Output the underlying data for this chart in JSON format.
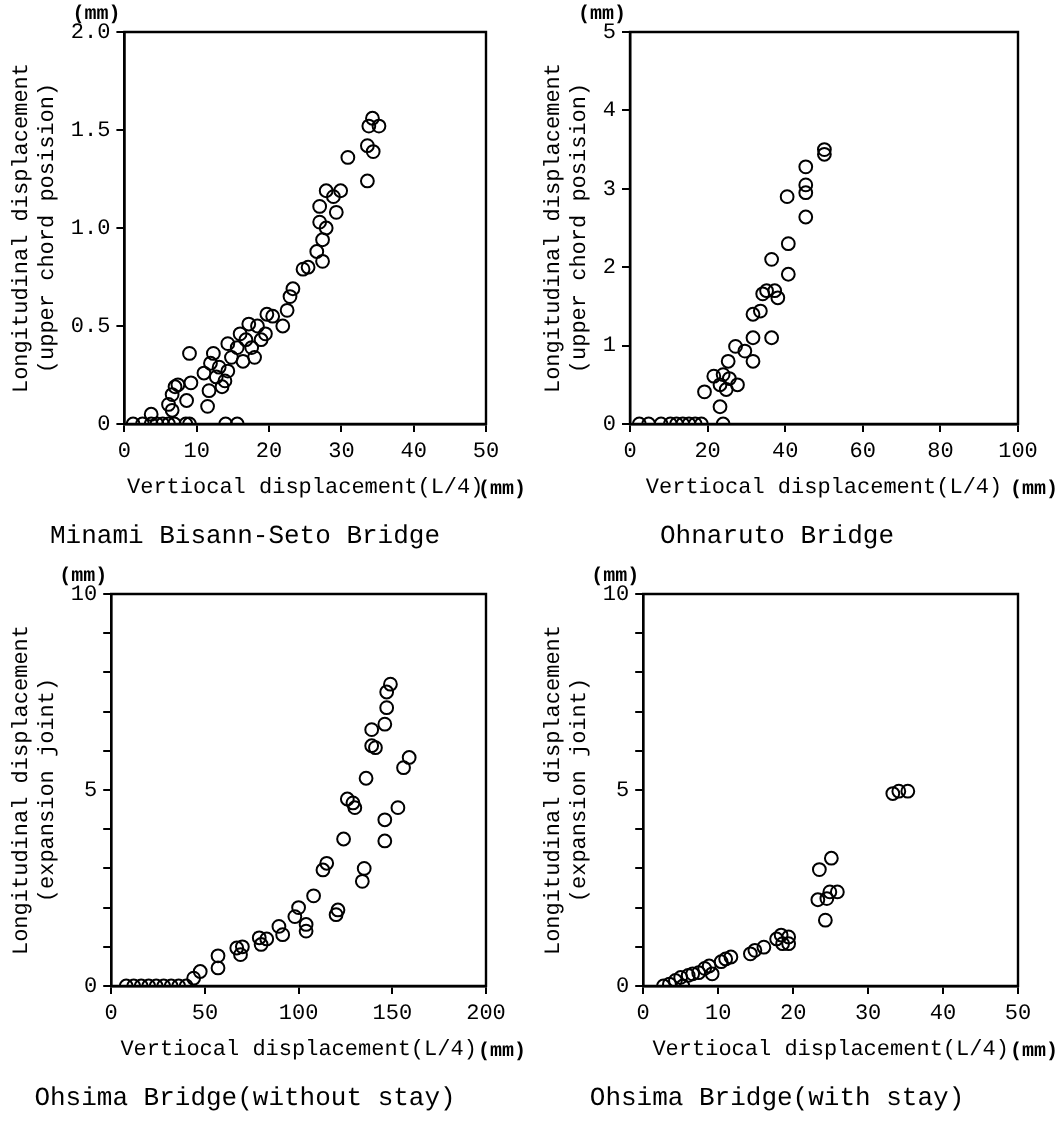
{
  "chart_data": [
    {
      "type": "scatter",
      "title": "Minami Bisann-Seto Bridge",
      "xlabel": "Vertiocal displacement(L/4)",
      "ylabel": "Longitudinal displacement\n(upper chord posision)",
      "annotations": [
        "(mm)",
        "(mm)"
      ],
      "marker": "circle",
      "xlim": [
        0,
        50
      ],
      "xticks": [
        0,
        10,
        20,
        30,
        40,
        50
      ],
      "ylim": [
        0,
        2
      ],
      "yticks": [
        0,
        {
          "value": 0.5,
          "label": "0.5"
        },
        {
          "value": 1,
          "label": "1.0"
        },
        {
          "value": 1.5,
          "label": "1.5"
        },
        {
          "value": 2,
          "label": "2.0"
        }
      ],
      "series": [
        {
          "color": "#000000",
          "x": [
            1.2,
            2.5,
            3.7,
            4.5,
            5.3,
            6.1,
            6.9,
            8.5,
            9,
            14,
            15.6,
            3.7,
            6.1,
            6.6,
            7,
            7.4,
            6.6,
            8.6,
            9,
            9.2,
            11,
            11.5,
            11.7,
            11.9,
            12.3,
            12.7,
            13.1,
            13.5,
            13.9,
            14.3,
            14.3,
            14.8,
            15.6,
            16,
            16.4,
            16.8,
            17.2,
            17.6,
            18,
            18.4,
            18.9,
            19.5,
            19.7,
            20.5,
            21.9,
            22.5,
            22.9,
            23.3,
            24.7,
            25.4,
            26.6,
            27,
            27,
            27.4,
            27.4,
            27.9,
            27.9,
            28.9,
            29.3,
            29.9,
            30.9,
            33.6,
            33.6,
            33.8,
            34.3,
            34.4,
            35.2
          ],
          "values": [
            0,
            0,
            0,
            0,
            0,
            0,
            0,
            0,
            0,
            0,
            0,
            0.05,
            0.1,
            0.15,
            0.19,
            0.2,
            0.07,
            0.12,
            0.36,
            0.21,
            0.26,
            0.09,
            0.17,
            0.31,
            0.36,
            0.24,
            0.29,
            0.19,
            0.22,
            0.27,
            0.41,
            0.34,
            0.39,
            0.46,
            0.32,
            0.43,
            0.51,
            0.39,
            0.34,
            0.5,
            0.43,
            0.46,
            0.56,
            0.55,
            0.5,
            0.58,
            0.65,
            0.69,
            0.79,
            0.8,
            0.88,
            1.03,
            1.11,
            0.94,
            0.83,
            1,
            1.19,
            1.16,
            1.08,
            1.19,
            1.36,
            1.42,
            1.24,
            1.52,
            1.56,
            1.39,
            1.52
          ]
        }
      ]
    },
    {
      "type": "scatter",
      "title": "Ohnaruto Bridge",
      "xlabel": "Vertiocal displacement(L/4)",
      "ylabel": "Longitudinal displacement\n(upper chord posision)",
      "annotations": [
        "(mm)",
        "(mm)"
      ],
      "marker": "circle",
      "xlim": [
        0,
        100
      ],
      "xticks": [
        0,
        20,
        40,
        60,
        80,
        100
      ],
      "ylim": [
        0,
        5
      ],
      "yticks": [
        0,
        1,
        2,
        3,
        4,
        5
      ],
      "series": [
        {
          "color": "#000000",
          "x": [
            2.4,
            4.8,
            8,
            10.4,
            12,
            13.6,
            15.2,
            16.8,
            18.4,
            24,
            19.2,
            21.6,
            23.2,
            23.2,
            24,
            24.8,
            25.3,
            25.6,
            27.2,
            27.7,
            29.6,
            31.7,
            31.7,
            31.7,
            33.6,
            34.2,
            35.2,
            36.5,
            36.5,
            37.3,
            38.1,
            40.5,
            40.8,
            40.8,
            45.3,
            45.3,
            45.3,
            45.3,
            50.1,
            50.1
          ],
          "values": [
            0,
            0,
            0,
            0,
            0,
            0,
            0,
            0,
            0,
            0,
            0.41,
            0.61,
            0.22,
            0.5,
            0.63,
            0.44,
            0.8,
            0.58,
            0.99,
            0.5,
            0.93,
            0.8,
            1.1,
            1.4,
            1.44,
            1.66,
            1.7,
            1.1,
            2.1,
            1.7,
            1.61,
            2.9,
            2.3,
            1.91,
            3.28,
            2.95,
            2.64,
            3.05,
            3.44,
            3.5
          ]
        }
      ]
    },
    {
      "type": "scatter",
      "title": "Ohsima Bridge(without stay)",
      "xlabel": "Vertiocal displacement(L/4)",
      "ylabel": "Longitudinal displacement\n(expansion joint)",
      "annotations": [
        "(mm)",
        "(mm)"
      ],
      "marker": "circle",
      "xlim": [
        0,
        200
      ],
      "xticks": [
        0,
        50,
        100,
        150,
        200
      ],
      "ylim": [
        0,
        10
      ],
      "yticks": [
        0,
        {
          "value": 1,
          "label": null
        },
        {
          "value": 2,
          "label": null
        },
        {
          "value": 3,
          "label": null
        },
        {
          "value": 4,
          "label": null
        },
        5,
        {
          "value": 6,
          "label": null
        },
        {
          "value": 7,
          "label": null
        },
        {
          "value": 8,
          "label": null
        },
        {
          "value": 9,
          "label": null
        },
        10
      ],
      "series": [
        {
          "color": "#000000",
          "x": [
            8,
            12,
            16,
            20,
            24,
            28,
            32,
            36,
            40,
            44,
            47.5,
            57,
            57,
            67,
            69,
            70,
            79,
            80,
            83,
            89.5,
            91.5,
            98,
            100,
            104,
            104,
            108,
            113,
            115,
            120,
            121,
            124,
            126,
            129,
            130,
            134,
            135,
            136,
            139,
            139,
            141,
            146,
            146,
            146,
            147,
            147,
            149,
            153,
            156,
            159
          ],
          "values": [
            0,
            0,
            0,
            0,
            0,
            0,
            0,
            0,
            0,
            0.2,
            0.37,
            0.77,
            0.46,
            0.97,
            0.8,
            1,
            1.23,
            1.06,
            1.2,
            1.52,
            1.31,
            1.77,
            2,
            1.4,
            1.57,
            2.3,
            2.96,
            3.13,
            1.82,
            1.94,
            3.75,
            4.77,
            4.67,
            4.55,
            2.67,
            3,
            5.3,
            6.13,
            6.54,
            6.08,
            3.7,
            4.24,
            6.68,
            7.1,
            7.5,
            7.7,
            4.55,
            5.57,
            5.83
          ]
        }
      ]
    },
    {
      "type": "scatter",
      "title": "Ohsima Bridge(with stay)",
      "xlabel": "Vertiocal displacement(L/4)",
      "ylabel": "Longitudinal displacement\n(expansion joint)",
      "annotations": [
        "(mm)",
        "(mm)"
      ],
      "marker": "circle",
      "xlim": [
        0,
        50
      ],
      "xticks": [
        0,
        10,
        20,
        30,
        40,
        50
      ],
      "ylim": [
        0,
        10
      ],
      "yticks": [
        0,
        {
          "value": 1,
          "label": null
        },
        {
          "value": 2,
          "label": null
        },
        {
          "value": 3,
          "label": null
        },
        {
          "value": 4,
          "label": null
        },
        5,
        {
          "value": 6,
          "label": null
        },
        {
          "value": 7,
          "label": null
        },
        {
          "value": 8,
          "label": null
        },
        {
          "value": 9,
          "label": null
        },
        10
      ],
      "series": [
        {
          "color": "#000000",
          "x": [
            2.7,
            3.5,
            4.3,
            5,
            5.3,
            6,
            6.6,
            7.4,
            8.2,
            8.8,
            9.2,
            10.4,
            11,
            11.7,
            14.3,
            14.9,
            16.1,
            17.8,
            18.4,
            18.6,
            19.4,
            19.4,
            23.3,
            23.5,
            24.3,
            24.5,
            24.9,
            25.1,
            25.9,
            33.3,
            34.1,
            35.3
          ],
          "values": [
            0,
            0.05,
            0.14,
            0.22,
            0,
            0.27,
            0.31,
            0.34,
            0.45,
            0.51,
            0.31,
            0.62,
            0.69,
            0.74,
            0.82,
            0.91,
            0.99,
            1.2,
            1.3,
            1.08,
            1.25,
            1.08,
            2.2,
            2.97,
            1.68,
            2.23,
            2.4,
            3.26,
            2.4,
            4.91,
            4.97,
            4.97
          ]
        }
      ]
    }
  ]
}
